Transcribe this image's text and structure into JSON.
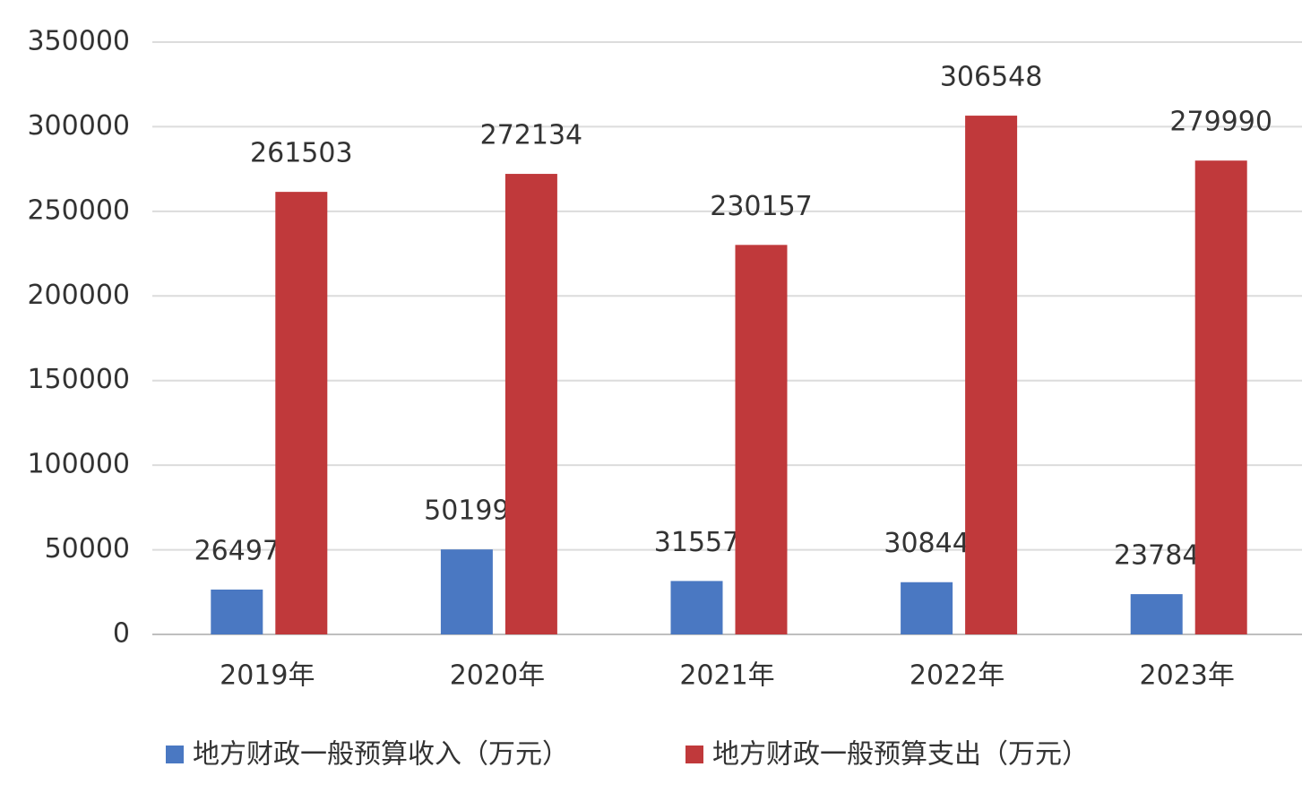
{
  "chart_data": {
    "type": "bar",
    "categories": [
      "2019年",
      "2020年",
      "2021年",
      "2022年",
      "2023年"
    ],
    "series": [
      {
        "name": "地方财政一般预算收入（万元）",
        "color": "#4a78c2",
        "values": [
          26497,
          50199,
          31557,
          30844,
          23784
        ]
      },
      {
        "name": "地方财政一般预算支出（万元）",
        "color": "#c0393b",
        "values": [
          261503,
          272134,
          230157,
          306548,
          279990
        ]
      }
    ],
    "ylim": [
      0,
      350000
    ],
    "yticks": [
      0,
      50000,
      100000,
      150000,
      200000,
      250000,
      300000,
      350000
    ],
    "grid": true,
    "legend": "bottom"
  }
}
